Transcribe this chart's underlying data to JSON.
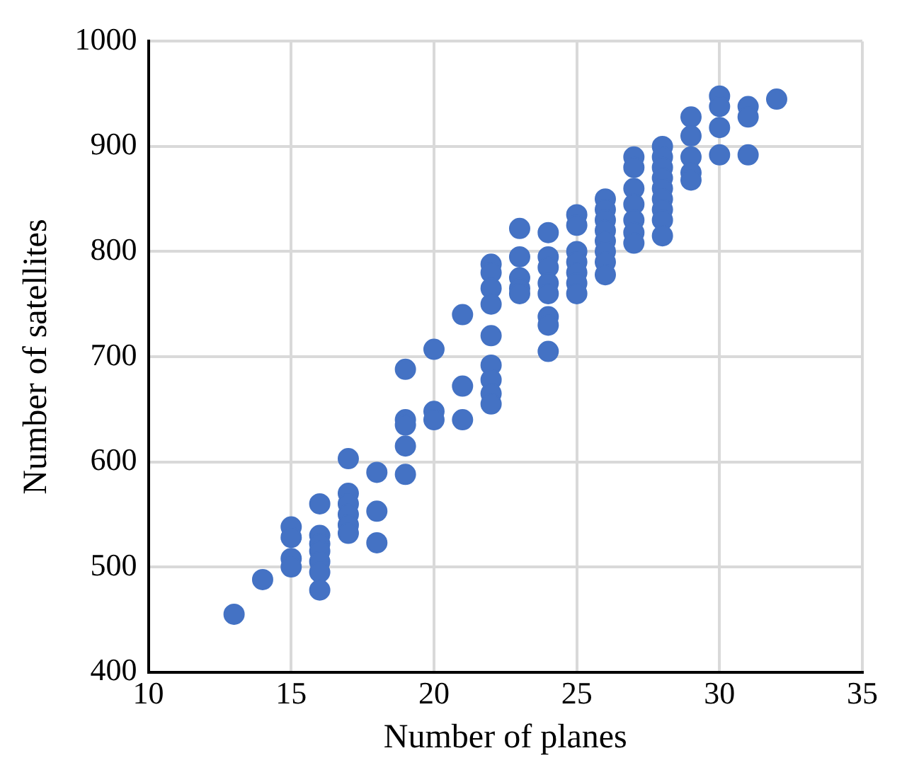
{
  "chart_data": {
    "type": "scatter",
    "xlabel": "Number of planes",
    "ylabel": "Number of satellites",
    "xlim": [
      10,
      35
    ],
    "xticks": [
      10,
      15,
      20,
      25,
      30,
      35
    ],
    "ylim": [
      400,
      1000
    ],
    "yticks": [
      400,
      500,
      600,
      700,
      800,
      900,
      1000
    ],
    "grid": true,
    "legend": false,
    "marker": "circle",
    "series": [
      {
        "color": "#4472c4",
        "x": [
          13,
          14,
          15,
          15,
          15,
          15,
          16,
          16,
          16,
          16,
          16,
          16,
          16,
          17,
          17,
          17,
          17,
          17,
          17,
          18,
          18,
          18,
          19,
          19,
          19,
          19,
          19,
          20,
          20,
          20,
          21,
          21,
          21,
          22,
          22,
          22,
          22,
          22,
          22,
          22,
          22,
          22,
          23,
          23,
          23,
          23,
          23,
          24,
          24,
          24,
          24,
          24,
          24,
          24,
          24,
          25,
          25,
          25,
          25,
          25,
          25,
          25,
          26,
          26,
          26,
          26,
          26,
          26,
          26,
          26,
          27,
          27,
          27,
          27,
          27,
          27,
          27,
          28,
          28,
          28,
          28,
          28,
          28,
          28,
          28,
          28,
          29,
          29,
          29,
          29,
          29,
          30,
          30,
          30,
          30,
          31,
          31,
          31,
          32
        ],
        "values": [
          455,
          488,
          538,
          528,
          508,
          500,
          560,
          530,
          522,
          515,
          505,
          495,
          478,
          603,
          570,
          560,
          550,
          540,
          532,
          590,
          553,
          523,
          688,
          640,
          635,
          615,
          588,
          707,
          648,
          640,
          740,
          672,
          640,
          788,
          780,
          765,
          750,
          720,
          692,
          678,
          665,
          655,
          822,
          795,
          775,
          765,
          760,
          818,
          795,
          785,
          770,
          760,
          738,
          730,
          705,
          835,
          825,
          800,
          790,
          780,
          770,
          760,
          850,
          840,
          830,
          820,
          810,
          800,
          790,
          778,
          890,
          880,
          860,
          845,
          830,
          818,
          808,
          900,
          890,
          880,
          870,
          860,
          850,
          840,
          830,
          815,
          928,
          910,
          890,
          875,
          868,
          948,
          938,
          918,
          892,
          938,
          928,
          892,
          945
        ]
      }
    ]
  }
}
